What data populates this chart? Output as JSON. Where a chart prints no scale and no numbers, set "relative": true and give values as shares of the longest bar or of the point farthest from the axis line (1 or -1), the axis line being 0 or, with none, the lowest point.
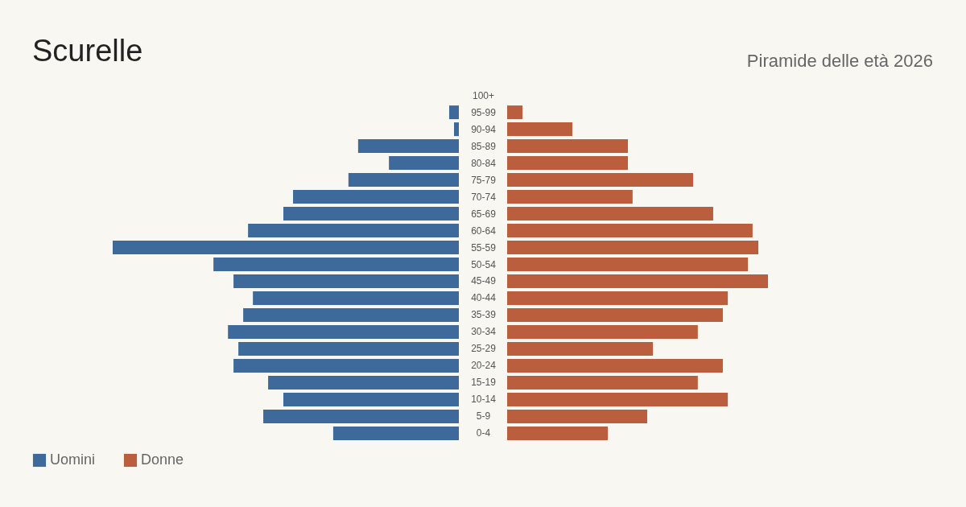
{
  "chart_data": [
    {
      "type": "bar",
      "orientation": "horizontal",
      "relative": true,
      "title": "Scurelle",
      "legend": "bottom left",
      "categories": [
        "100+",
        "95-99",
        "90-94",
        "85-89",
        "80-84",
        "75-79",
        "70-74",
        "65-69",
        "60-64",
        "55-59",
        "50-54",
        "45-49",
        "40-44",
        "35-39",
        "30-34",
        "25-29",
        "20-24",
        "15-19",
        "10-14",
        "5-9",
        "0-4"
      ],
      "series": [
        {
          "name": "Uomini",
          "color": "#3d6a9a",
          "values": [
            0,
            0.028,
            0.014,
            0.291,
            0.202,
            0.319,
            0.479,
            0.507,
            0.609,
            1,
            0.709,
            0.651,
            0.595,
            0.623,
            0.667,
            0.637,
            0.651,
            0.551,
            0.507,
            0.565,
            0.363
          ]
        }
      ]
    },
    {
      "type": "bar",
      "orientation": "horizontal",
      "relative": true,
      "title": "Piramide delle età 2026",
      "legend": "bottom left",
      "tick_labels": false,
      "categories": [
        "100+",
        "95-99",
        "90-94",
        "85-89",
        "80-84",
        "75-79",
        "70-74",
        "65-69",
        "60-64",
        "55-59",
        "50-54",
        "45-49",
        "40-44",
        "35-39",
        "30-34",
        "25-29",
        "20-24",
        "15-19",
        "10-14",
        "5-9",
        "0-4"
      ],
      "series": [
        {
          "name": "Donne",
          "color": "#bb5e3e",
          "values": [
            0,
            0.059,
            0.25,
            0.463,
            0.463,
            0.713,
            0.481,
            0.79,
            0.941,
            0.963,
            0.923,
            1,
            0.846,
            0.827,
            0.731,
            0.559,
            0.827,
            0.731,
            0.846,
            0.537,
            0.386
          ]
        }
      ]
    }
  ]
}
